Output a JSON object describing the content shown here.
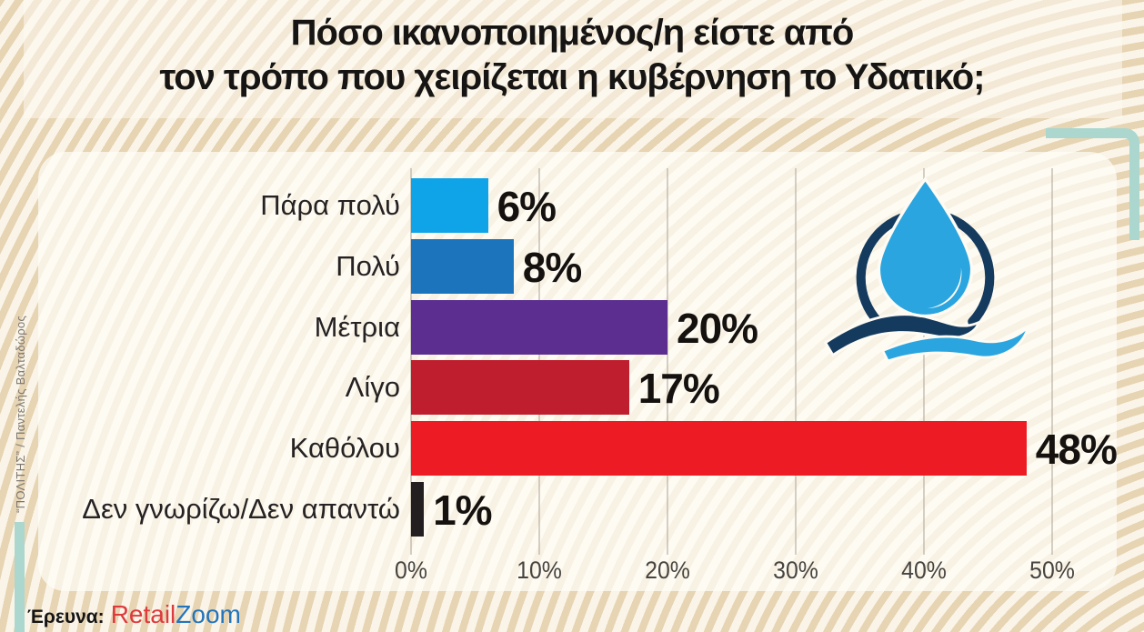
{
  "title": {
    "line1": "Πόσο ικανοποιημένος/η είστε από",
    "line2": "τον τρόπο που χειρίζεται η κυβέρνηση το Υδατικό;"
  },
  "chart_data": {
    "type": "bar",
    "orientation": "horizontal",
    "categories": [
      "Πάρα πολύ",
      "Πολύ",
      "Μέτρια",
      "Λίγο",
      "Καθόλου",
      "Δεν γνωρίζω/Δεν απαντώ"
    ],
    "values": [
      6,
      8,
      20,
      17,
      48,
      1
    ],
    "value_labels": [
      "6%",
      "8%",
      "20%",
      "17%",
      "48%",
      "1%"
    ],
    "bar_colors": [
      "#0fa4e8",
      "#1c75bc",
      "#5c2e90",
      "#be1e2d",
      "#ed1c24",
      "#231f20"
    ],
    "x_ticks": [
      "0%",
      "10%",
      "20%",
      "30%",
      "40%",
      "50%"
    ],
    "x_tick_values": [
      0,
      10,
      20,
      30,
      40,
      50
    ],
    "xlim": [
      0,
      55
    ],
    "grid": true,
    "legend": false,
    "title": "Πόσο ικανοποιημένος/η είστε από τον τρόπο που χειρίζεται η κυβέρνηση το Υδατικό;"
  },
  "source": {
    "label": "Έρευνα:",
    "brand_part1": "Retail",
    "brand_part2": "Zoom",
    "brand_color1": "#de3a3d",
    "brand_color2": "#2374bb"
  },
  "credit": "“ΠΟΛΙΤΗΣ” / Παντελής Βαλταδώρος",
  "icons": {
    "logo": "water-drop-logo"
  },
  "colors": {
    "background": "#f5eedf",
    "stripe": "#e2cda7",
    "panel": "#fffdf6",
    "accent_teal": "#abd7cf",
    "drop_blue": "#2aa5df",
    "navy": "#143a5e",
    "text": "#171513"
  }
}
